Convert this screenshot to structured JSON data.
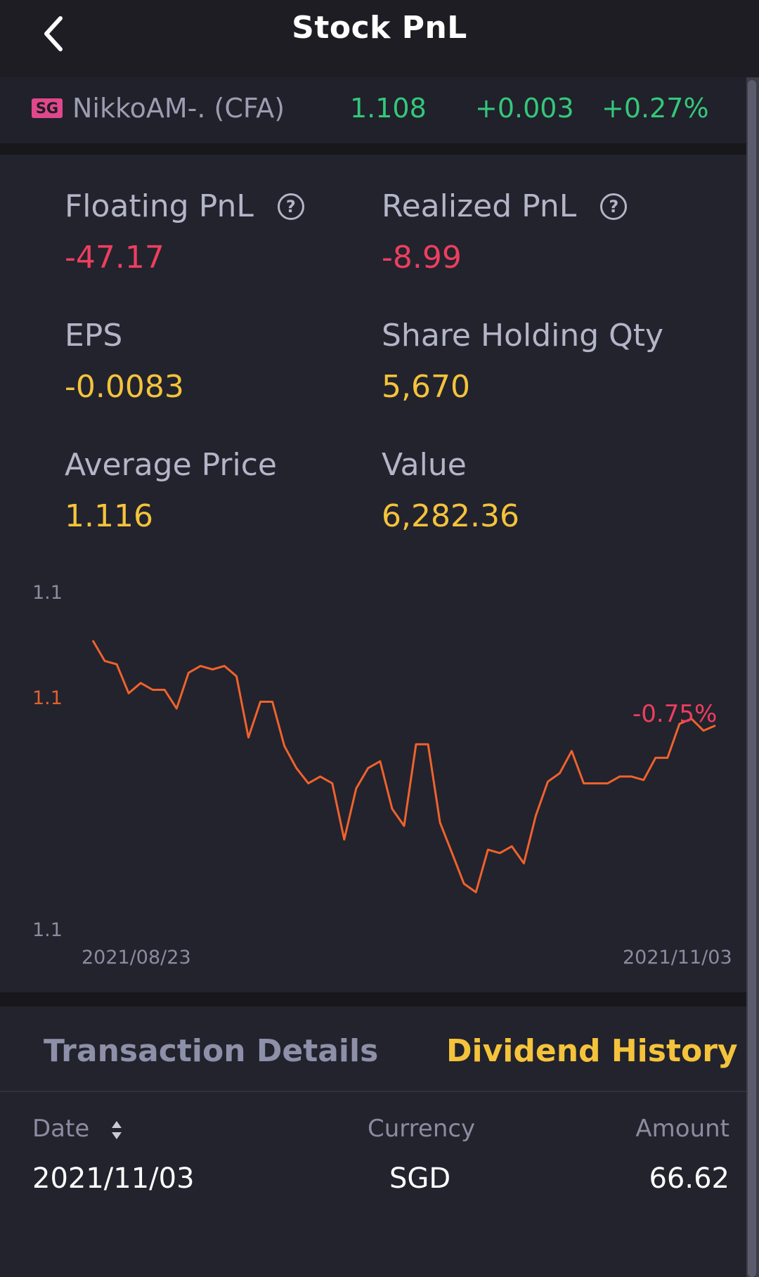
{
  "header": {
    "title": "Stock PnL",
    "back_icon": "chevron-left-icon"
  },
  "ticker": {
    "market": "SG",
    "name": "NikkoAM-. (CFA)",
    "price": "1.108",
    "change": "+0.003",
    "change_pct": "+0.27%",
    "up_color": "#34c77b"
  },
  "metrics": {
    "floating_pnl": {
      "label": "Floating PnL",
      "value": "-47.17"
    },
    "realized_pnl": {
      "label": "Realized PnL",
      "value": "-8.99"
    },
    "eps": {
      "label": "EPS",
      "value": "-0.0083"
    },
    "share_qty": {
      "label": "Share Holding Qty",
      "value": "5,670"
    },
    "avg_price": {
      "label": "Average Price",
      "value": "1.116"
    },
    "value": {
      "label": "Value",
      "value": "6,282.36"
    },
    "help_symbol": "?"
  },
  "chart_data": {
    "type": "line",
    "y_ticks": [
      "1.1",
      "1.1",
      "1.1"
    ],
    "x_ticks": [
      "2021/08/23",
      "2021/11/03"
    ],
    "change_label": "-0.75%",
    "line_color": "#f0622c",
    "series": [
      {
        "values": [
          0.865,
          0.805,
          0.795,
          0.71,
          0.74,
          0.72,
          0.72,
          0.665,
          0.77,
          0.79,
          0.78,
          0.79,
          0.76,
          0.58,
          0.685,
          0.685,
          0.555,
          0.49,
          0.445,
          0.465,
          0.445,
          0.28,
          0.43,
          0.49,
          0.51,
          0.37,
          0.32,
          0.56,
          0.56,
          0.33,
          0.24,
          0.15,
          0.125,
          0.25,
          0.24,
          0.26,
          0.21,
          0.35,
          0.45,
          0.475,
          0.54,
          0.445,
          0.445,
          0.445,
          0.465,
          0.465,
          0.455,
          0.52,
          0.52,
          0.62,
          0.635,
          0.6,
          0.615
        ]
      }
    ]
  },
  "tabs": {
    "transactions": "Transaction Details",
    "dividend": "Dividend History"
  },
  "table": {
    "headers": {
      "date": "Date",
      "currency": "Currency",
      "amount": "Amount"
    },
    "rows": [
      {
        "date": "2021/11/03",
        "currency": "SGD",
        "amount": "66.62"
      }
    ]
  }
}
